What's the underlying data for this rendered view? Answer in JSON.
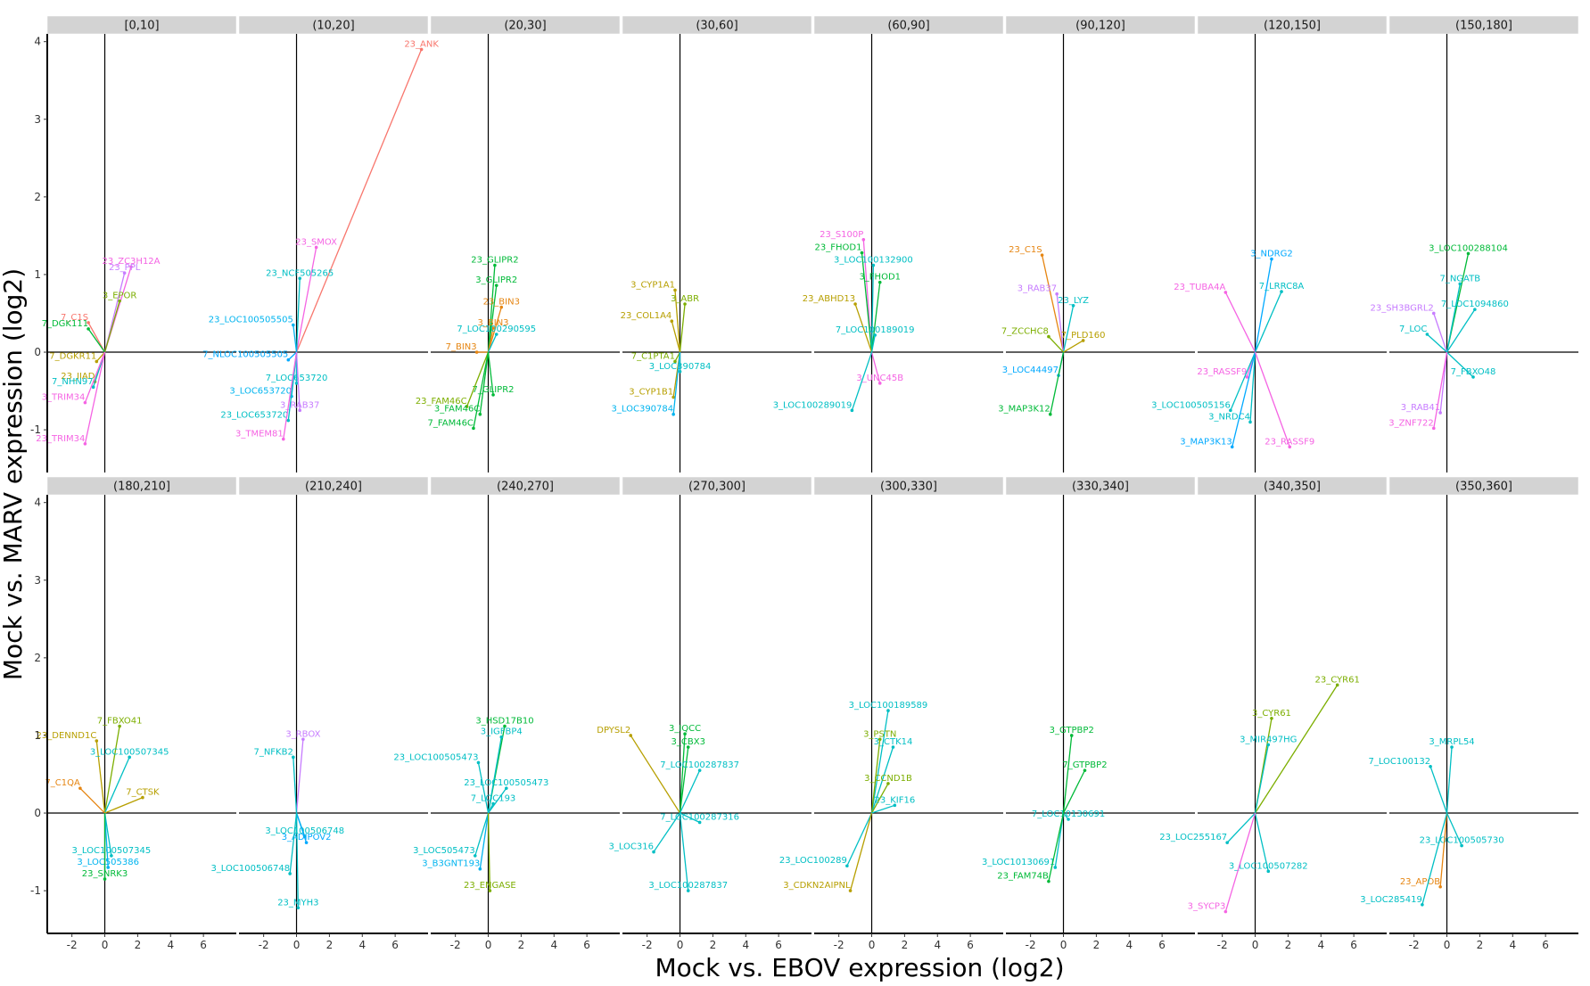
{
  "chart_data": {
    "type": "scatter",
    "title": "",
    "xlabel": "Mock vs. EBOV expression (log2)",
    "ylabel": "Mock vs. MARV expression (log2)",
    "xlim": [
      -3.5,
      8
    ],
    "ylim": [
      -1.55,
      4.1
    ],
    "x_ticks": [
      -2,
      0,
      2,
      4,
      6
    ],
    "y_ticks": [
      -1,
      0,
      1,
      2,
      3,
      4
    ],
    "x_tick_labels": [
      "-2",
      "0",
      "2",
      "4",
      "6"
    ],
    "y_tick_labels": [
      "-1",
      "0",
      "1",
      "2",
      "3",
      "4"
    ],
    "reference_lines": {
      "x": 0,
      "y": 0
    },
    "facet_layout": {
      "rows": 2,
      "cols": 8
    },
    "note": "Each gene is drawn as a segment from the origin (0,0) to its point, labelled with timepoint prefix (3_, 7_, 23_) and gene symbol. Representative labelled genes listed per facet.",
    "panels": [
      {
        "label": "[0,10]",
        "genes": [
          {
            "name": "23_ZC3H12A",
            "x": 1.6,
            "y": 1.1,
            "color": "#f464e3"
          },
          {
            "name": "23_PPL",
            "x": 1.2,
            "y": 1.02,
            "color": "#c77cff"
          },
          {
            "name": "3_EPOR",
            "x": 0.9,
            "y": 0.66,
            "color": "#7cae00"
          },
          {
            "name": "7_C1S",
            "x": -1.0,
            "y": 0.38,
            "color": "#f8766d"
          },
          {
            "name": "7_DGK111",
            "x": -1.0,
            "y": 0.3,
            "color": "#00ba38"
          },
          {
            "name": "7_DGKR11",
            "x": -0.5,
            "y": -0.12,
            "color": "#b79f00"
          },
          {
            "name": "23_IIAD",
            "x": -0.6,
            "y": -0.38,
            "color": "#b79f00"
          },
          {
            "name": "7_NHN97",
            "x": -0.7,
            "y": -0.45,
            "color": "#00bfc4"
          },
          {
            "name": "3_TRIM34",
            "x": -1.2,
            "y": -0.65,
            "color": "#f564e3"
          },
          {
            "name": "23_TRIM34",
            "x": -1.2,
            "y": -1.18,
            "color": "#f564e3"
          }
        ]
      },
      {
        "label": "(10,20]",
        "genes": [
          {
            "name": "23_ANK",
            "x": 7.6,
            "y": 3.9,
            "color": "#f8766d"
          },
          {
            "name": "23_SMOX",
            "x": 1.2,
            "y": 1.35,
            "color": "#f564e3"
          },
          {
            "name": "23_NCF505265",
            "x": 0.2,
            "y": 0.95,
            "color": "#00bfc4"
          },
          {
            "name": "23_LOC100505505",
            "x": -0.2,
            "y": 0.35,
            "color": "#00b4ef"
          },
          {
            "name": "7_NLOC100505505",
            "x": -0.5,
            "y": -0.1,
            "color": "#00a9ff"
          },
          {
            "name": "7_LOC653720",
            "x": 0.0,
            "y": -0.4,
            "color": "#00bfc4"
          },
          {
            "name": "3_LOC653720",
            "x": -0.3,
            "y": -0.57,
            "color": "#00b4ef"
          },
          {
            "name": "3_RAB37",
            "x": 0.2,
            "y": -0.75,
            "color": "#c77cff"
          },
          {
            "name": "23_LOC653720",
            "x": -0.5,
            "y": -0.88,
            "color": "#00bfc4"
          },
          {
            "name": "3_TMEM81",
            "x": -0.8,
            "y": -1.12,
            "color": "#f564e3"
          }
        ]
      },
      {
        "label": "(20,30]",
        "genes": [
          {
            "name": "23_GLIPR2",
            "x": 0.4,
            "y": 1.12,
            "color": "#00ba38"
          },
          {
            "name": "3_GLIPR2",
            "x": 0.5,
            "y": 0.86,
            "color": "#00ba38"
          },
          {
            "name": "23_BIN3",
            "x": 0.8,
            "y": 0.58,
            "color": "#e68613"
          },
          {
            "name": "3_BIN3",
            "x": 0.3,
            "y": 0.31,
            "color": "#e68613"
          },
          {
            "name": "7_LOC100290595",
            "x": 0.5,
            "y": 0.23,
            "color": "#00bfc4"
          },
          {
            "name": "7_BIN3",
            "x": -0.7,
            "y": 0.0,
            "color": "#e68613"
          },
          {
            "name": "7_GLIPR2",
            "x": 0.3,
            "y": -0.55,
            "color": "#00ba38"
          },
          {
            "name": "23_FAM46C",
            "x": -1.3,
            "y": -0.7,
            "color": "#7cae00"
          },
          {
            "name": "3_FAM46C",
            "x": -0.5,
            "y": -0.8,
            "color": "#00ba38"
          },
          {
            "name": "7_FAM46C",
            "x": -0.9,
            "y": -0.98,
            "color": "#00ba38"
          }
        ]
      },
      {
        "label": "(30,60]",
        "genes": [
          {
            "name": "3_CYP1A1",
            "x": -0.3,
            "y": 0.8,
            "color": "#b79f00"
          },
          {
            "name": "3_ABR",
            "x": 0.3,
            "y": 0.62,
            "color": "#7cae00"
          },
          {
            "name": "23_COL1A4",
            "x": -0.5,
            "y": 0.4,
            "color": "#b79f00"
          },
          {
            "name": "7_C1PTA1",
            "x": -0.3,
            "y": -0.12,
            "color": "#7cae00"
          },
          {
            "name": "3_LOC390784",
            "x": 0.0,
            "y": -0.25,
            "color": "#00bfc4"
          },
          {
            "name": "3_CYP1B1",
            "x": -0.4,
            "y": -0.58,
            "color": "#b79f00"
          },
          {
            "name": "3_LOC390784",
            "x": -0.4,
            "y": -0.8,
            "color": "#00b4ef"
          }
        ]
      },
      {
        "label": "(60,90]",
        "genes": [
          {
            "name": "23_S100P",
            "x": -0.5,
            "y": 1.45,
            "color": "#f564e3"
          },
          {
            "name": "23_FHOD1",
            "x": -0.6,
            "y": 1.28,
            "color": "#00ba38"
          },
          {
            "name": "3_LOC100132900",
            "x": 0.1,
            "y": 1.12,
            "color": "#00bfc4"
          },
          {
            "name": "3_FHOD1",
            "x": 0.5,
            "y": 0.9,
            "color": "#00ba38"
          },
          {
            "name": "23_ABHD13",
            "x": -1.0,
            "y": 0.62,
            "color": "#b79f00"
          },
          {
            "name": "7_LOC100189019",
            "x": 0.2,
            "y": 0.22,
            "color": "#00bfc4"
          },
          {
            "name": "3_UNC45B",
            "x": 0.5,
            "y": -0.4,
            "color": "#f564e3"
          },
          {
            "name": "3_LOC100289019",
            "x": -1.2,
            "y": -0.75,
            "color": "#00bfc4"
          }
        ]
      },
      {
        "label": "(90,120]",
        "genes": [
          {
            "name": "23_C1S",
            "x": -1.3,
            "y": 1.25,
            "color": "#e68613"
          },
          {
            "name": "3_RAB37",
            "x": -0.4,
            "y": 0.75,
            "color": "#c77cff"
          },
          {
            "name": "23_LYZ",
            "x": 0.6,
            "y": 0.6,
            "color": "#00bfc4"
          },
          {
            "name": "7_ZCCHC8",
            "x": -0.9,
            "y": 0.2,
            "color": "#7cae00"
          },
          {
            "name": "7_PLD160",
            "x": 1.2,
            "y": 0.15,
            "color": "#b79f00"
          },
          {
            "name": "3_LOC44497",
            "x": -0.3,
            "y": -0.3,
            "color": "#00a9ff"
          },
          {
            "name": "3_MAP3K12",
            "x": -0.8,
            "y": -0.8,
            "color": "#00ba38"
          }
        ]
      },
      {
        "label": "(120,150]",
        "genes": [
          {
            "name": "3_NDRG2",
            "x": 1.0,
            "y": 1.2,
            "color": "#00a9ff"
          },
          {
            "name": "23_TUBA4A",
            "x": -1.8,
            "y": 0.77,
            "color": "#f564e3"
          },
          {
            "name": "7_LRRC8A",
            "x": 1.6,
            "y": 0.78,
            "color": "#00bfc4"
          },
          {
            "name": "23_RASSF9",
            "x": -0.5,
            "y": -0.32,
            "color": "#f564e3"
          },
          {
            "name": "3_LOC100505156",
            "x": -1.5,
            "y": -0.75,
            "color": "#00bfc4"
          },
          {
            "name": "3_NRDC4",
            "x": -0.3,
            "y": -0.9,
            "color": "#00bfc4"
          },
          {
            "name": "3_MAP3K13",
            "x": -1.4,
            "y": -1.22,
            "color": "#00a9ff"
          },
          {
            "name": "23_RASSF9",
            "x": 2.1,
            "y": -1.22,
            "color": "#f564e3"
          }
        ]
      },
      {
        "label": "(150,180]",
        "genes": [
          {
            "name": "3_LOC100288104",
            "x": 1.3,
            "y": 1.27,
            "color": "#00ba38"
          },
          {
            "name": "7_NGATB",
            "x": 0.8,
            "y": 0.88,
            "color": "#00bfc4"
          },
          {
            "name": "23_SH3BGRL2",
            "x": -0.8,
            "y": 0.5,
            "color": "#c77cff"
          },
          {
            "name": "7_LOC1094860",
            "x": 1.7,
            "y": 0.55,
            "color": "#00bfc4"
          },
          {
            "name": "7_LOC",
            "x": -1.2,
            "y": 0.23,
            "color": "#00bfc4"
          },
          {
            "name": "7_FBXO48",
            "x": 1.6,
            "y": -0.32,
            "color": "#00bfc4"
          },
          {
            "name": "3_RAB41",
            "x": -0.4,
            "y": -0.78,
            "color": "#c77cff"
          },
          {
            "name": "3_ZNF722",
            "x": -0.8,
            "y": -0.98,
            "color": "#f564e3"
          }
        ]
      },
      {
        "label": "(180,210]",
        "genes": [
          {
            "name": "7_FBXO41",
            "x": 0.9,
            "y": 1.12,
            "color": "#7cae00"
          },
          {
            "name": "23_DENND1C",
            "x": -0.5,
            "y": 0.93,
            "color": "#b79f00"
          },
          {
            "name": "3_LOC100507345",
            "x": 1.5,
            "y": 0.72,
            "color": "#00bfc4"
          },
          {
            "name": "7_CTSK",
            "x": 2.3,
            "y": 0.2,
            "color": "#b79f00"
          },
          {
            "name": "7_C1QA",
            "x": -1.5,
            "y": 0.32,
            "color": "#e68613"
          },
          {
            "name": "3_LOC100507345",
            "x": 0.4,
            "y": -0.55,
            "color": "#00bfc4"
          },
          {
            "name": "3_LOC505386",
            "x": 0.2,
            "y": -0.7,
            "color": "#00b4ef"
          },
          {
            "name": "23_SNRK3",
            "x": 0.0,
            "y": -0.85,
            "color": "#00ba38"
          }
        ]
      },
      {
        "label": "(210,240]",
        "genes": [
          {
            "name": "3_RBOX",
            "x": 0.4,
            "y": 0.95,
            "color": "#c77cff"
          },
          {
            "name": "7_NFKB2",
            "x": -0.2,
            "y": 0.72,
            "color": "#00bfc4"
          },
          {
            "name": "3_LOC100506748",
            "x": 0.5,
            "y": -0.3,
            "color": "#00bfc4"
          },
          {
            "name": "3_ADIPOV2",
            "x": 0.6,
            "y": -0.38,
            "color": "#00a9ff"
          },
          {
            "name": "3_LOC100506748",
            "x": -0.4,
            "y": -0.78,
            "color": "#00bfc4"
          },
          {
            "name": "23_MYH3",
            "x": 0.1,
            "y": -1.22,
            "color": "#00bfc4"
          }
        ]
      },
      {
        "label": "(240,270]",
        "genes": [
          {
            "name": "3_HSD17B10",
            "x": 1.0,
            "y": 1.12,
            "color": "#00ba38"
          },
          {
            "name": "3_IGFBP4",
            "x": 0.8,
            "y": 0.98,
            "color": "#00bfc4"
          },
          {
            "name": "23_LOC100505473",
            "x": -0.6,
            "y": 0.65,
            "color": "#00bfc4"
          },
          {
            "name": "23_LOC100505473",
            "x": 1.1,
            "y": 0.32,
            "color": "#00bfc4"
          },
          {
            "name": "7_LOC193",
            "x": 0.3,
            "y": 0.12,
            "color": "#00bfc4"
          },
          {
            "name": "3_LOC505473",
            "x": -0.8,
            "y": -0.55,
            "color": "#00bfc4"
          },
          {
            "name": "3_B3GNT193",
            "x": -0.5,
            "y": -0.72,
            "color": "#00b4ef"
          },
          {
            "name": "23_ENGASE",
            "x": 0.1,
            "y": -1.0,
            "color": "#7cae00"
          }
        ]
      },
      {
        "label": "(270,300]",
        "genes": [
          {
            "name": "DPYSL2",
            "x": -3.0,
            "y": 1.0,
            "color": "#b79f00"
          },
          {
            "name": "3_IQCC",
            "x": 0.3,
            "y": 1.02,
            "color": "#00ba38"
          },
          {
            "name": "3_CBX3",
            "x": 0.5,
            "y": 0.85,
            "color": "#00ba38"
          },
          {
            "name": "7_LOC100287837",
            "x": 1.2,
            "y": 0.55,
            "color": "#00bfc4"
          },
          {
            "name": "7_LOC100287316",
            "x": 1.2,
            "y": -0.12,
            "color": "#00bfc4"
          },
          {
            "name": "3_LOC316",
            "x": -1.6,
            "y": -0.5,
            "color": "#00bfc4"
          },
          {
            "name": "3_LOC100287837",
            "x": 0.5,
            "y": -1.0,
            "color": "#00bfc4"
          }
        ]
      },
      {
        "label": "(300,330]",
        "genes": [
          {
            "name": "3_LOC100189589",
            "x": 1.0,
            "y": 1.32,
            "color": "#00bfc4"
          },
          {
            "name": "3_PSTN",
            "x": 0.5,
            "y": 0.95,
            "color": "#7cae00"
          },
          {
            "name": "3_CTK14",
            "x": 1.3,
            "y": 0.85,
            "color": "#00bfc4"
          },
          {
            "name": "3_CCND1B",
            "x": 1.0,
            "y": 0.38,
            "color": "#7cae00"
          },
          {
            "name": "23_KIF16",
            "x": 1.4,
            "y": 0.1,
            "color": "#00bfc4"
          },
          {
            "name": "23_LOC100289",
            "x": -1.5,
            "y": -0.68,
            "color": "#00bfc4"
          },
          {
            "name": "3_CDKN2AIPNL",
            "x": -1.3,
            "y": -1.0,
            "color": "#b79f00"
          }
        ]
      },
      {
        "label": "(330,340]",
        "genes": [
          {
            "name": "3_GTPBP2",
            "x": 0.5,
            "y": 1.0,
            "color": "#00ba38"
          },
          {
            "name": "7_GTPBP2",
            "x": 1.3,
            "y": 0.55,
            "color": "#00ba38"
          },
          {
            "name": "7_LOC10130691",
            "x": 0.3,
            "y": -0.08,
            "color": "#00bfc4"
          },
          {
            "name": "3_LOC10130691",
            "x": -0.5,
            "y": -0.7,
            "color": "#00bfc4"
          },
          {
            "name": "23_FAM74B",
            "x": -0.9,
            "y": -0.88,
            "color": "#00ba38"
          }
        ]
      },
      {
        "label": "(340,350]",
        "genes": [
          {
            "name": "23_CYR61",
            "x": 5.0,
            "y": 1.65,
            "color": "#7cae00"
          },
          {
            "name": "3_CYR61",
            "x": 1.0,
            "y": 1.22,
            "color": "#7cae00"
          },
          {
            "name": "3_MIR497HG",
            "x": 0.8,
            "y": 0.88,
            "color": "#00bfc4"
          },
          {
            "name": "23_LOC255167",
            "x": -1.7,
            "y": -0.38,
            "color": "#00bfc4"
          },
          {
            "name": "3_LOC100507282",
            "x": 0.8,
            "y": -0.75,
            "color": "#00bfc4"
          },
          {
            "name": "3_SYCP3",
            "x": -1.8,
            "y": -1.27,
            "color": "#f564e3"
          }
        ]
      },
      {
        "label": "(350,360]",
        "genes": [
          {
            "name": "3_MRPL54",
            "x": 0.3,
            "y": 0.85,
            "color": "#00bfc4"
          },
          {
            "name": "7_LOC100132",
            "x": -1.0,
            "y": 0.6,
            "color": "#00bfc4"
          },
          {
            "name": "23_LOC100505730",
            "x": 0.9,
            "y": -0.42,
            "color": "#00bfc4"
          },
          {
            "name": "23_APOB",
            "x": -0.4,
            "y": -0.95,
            "color": "#e68613"
          },
          {
            "name": "3_LOC285419",
            "x": -1.5,
            "y": -1.18,
            "color": "#00bfc4"
          }
        ]
      }
    ]
  }
}
